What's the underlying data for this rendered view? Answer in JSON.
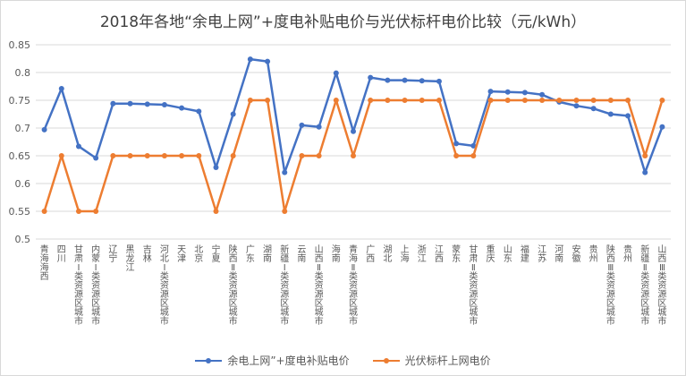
{
  "chart_data": {
    "type": "line",
    "title": "2018年各地“余电上网”+度电补贴电价与光伏标杆电价比较（元/kWh）",
    "ylim": [
      0.5,
      0.85
    ],
    "yticks": [
      "0.5",
      "0.55",
      "0.6",
      "0.65",
      "0.7",
      "0.75",
      "0.8",
      "0.85"
    ],
    "grid": true,
    "legend_position": "bottom",
    "categories": [
      "青海海西",
      "四川",
      "甘肃Ⅰ类资源区城市",
      "内蒙Ⅰ类资源区城市",
      "辽宁",
      "黑龙江",
      "吉林",
      "河北Ⅰ类资源区城市",
      "天津",
      "北京",
      "宁夏",
      "陕西Ⅱ类资源区城市",
      "广东",
      "湖南",
      "新疆Ⅰ类资源区城市",
      "云南",
      "山西Ⅱ类资源区城市",
      "海南",
      "青海Ⅱ类资源区城市",
      "广西",
      "湖北",
      "上海",
      "浙江",
      "江西",
      "蒙东",
      "甘肃Ⅱ类资源区城市",
      "重庆",
      "山东",
      "福建",
      "江苏",
      "河南",
      "安徽",
      "贵州",
      "陕西Ⅲ类资源区城市",
      "贵州",
      "新疆Ⅱ类资源区城市",
      "山西Ⅲ类资源区城市"
    ],
    "series": [
      {
        "name": "余电上网”+度电补贴电价",
        "color": "#4472c4",
        "values": [
          0.697,
          0.771,
          0.667,
          0.646,
          0.744,
          0.744,
          0.743,
          0.742,
          0.736,
          0.73,
          0.629,
          0.725,
          0.824,
          0.82,
          0.62,
          0.705,
          0.702,
          0.799,
          0.694,
          0.791,
          0.786,
          0.786,
          0.785,
          0.784,
          0.672,
          0.668,
          0.766,
          0.765,
          0.764,
          0.76,
          0.747,
          0.74,
          0.735,
          0.725,
          0.722,
          0.62,
          0.702
        ]
      },
      {
        "name": "光伏标杆上网电价",
        "color": "#ed7d31",
        "values": [
          0.55,
          0.65,
          0.55,
          0.55,
          0.65,
          0.65,
          0.65,
          0.65,
          0.65,
          0.65,
          0.55,
          0.65,
          0.75,
          0.75,
          0.55,
          0.65,
          0.65,
          0.75,
          0.65,
          0.75,
          0.75,
          0.75,
          0.75,
          0.75,
          0.65,
          0.65,
          0.75,
          0.75,
          0.75,
          0.75,
          0.75,
          0.75,
          0.75,
          0.75,
          0.75,
          0.65,
          0.75
        ]
      }
    ]
  }
}
